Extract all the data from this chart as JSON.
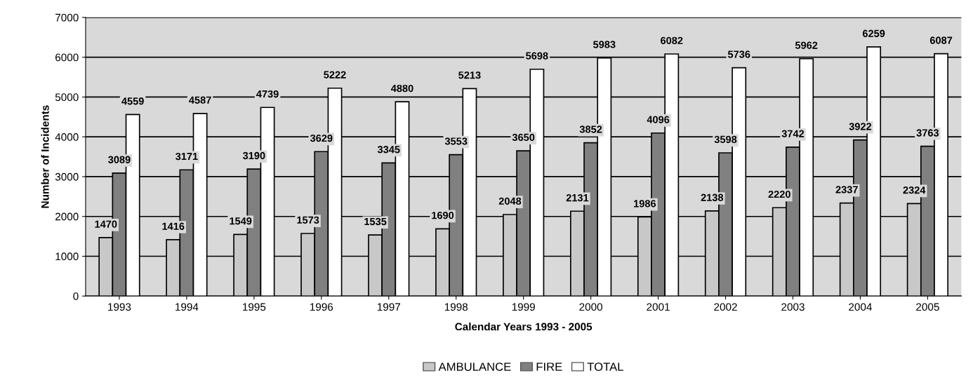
{
  "chart_data": {
    "type": "bar",
    "xlabel": "Calendar Years 1993 - 2005",
    "ylabel": "Number of Incidents",
    "categories": [
      "1993",
      "1994",
      "1995",
      "1996",
      "1997",
      "1998",
      "1999",
      "2000",
      "2001",
      "2002",
      "2003",
      "2004",
      "2005"
    ],
    "series": [
      {
        "name": "AMBULANCE",
        "color": "#c8c8c8",
        "values": [
          1470,
          1416,
          1549,
          1573,
          1535,
          1690,
          2048,
          2131,
          1986,
          2138,
          2220,
          2337,
          2324
        ]
      },
      {
        "name": "FIRE",
        "color": "#808080",
        "values": [
          3089,
          3171,
          3190,
          3629,
          3345,
          3553,
          3650,
          3852,
          4096,
          3598,
          3742,
          3922,
          3763
        ]
      },
      {
        "name": "TOTAL",
        "color": "#ffffff",
        "values": [
          4559,
          4587,
          4739,
          5222,
          4880,
          5213,
          5698,
          5983,
          6082,
          5736,
          5962,
          6259,
          6087
        ]
      }
    ],
    "ylim": [
      0,
      7000
    ],
    "yticks": [
      0,
      1000,
      2000,
      3000,
      4000,
      5000,
      6000,
      7000
    ],
    "grid": "y",
    "legend": "bottom",
    "data_labels": true
  }
}
